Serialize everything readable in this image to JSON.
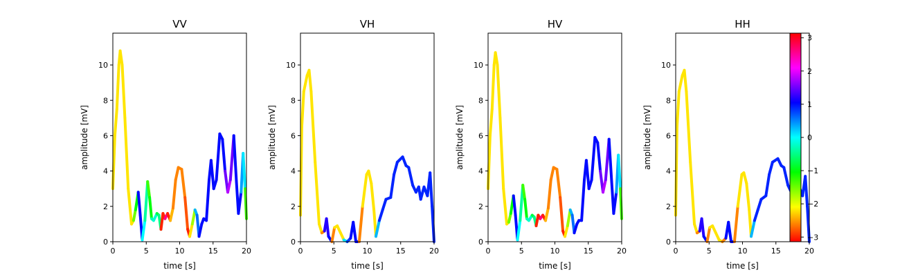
{
  "chart_data": {
    "type": "line",
    "description_colorscale": "hsv phase colormap",
    "colorbar": {
      "ticks": [
        3,
        2,
        1,
        0,
        -1,
        -2,
        -3
      ],
      "range": [
        -3.14,
        3.14
      ]
    },
    "panels": [
      {
        "title": "VV",
        "xlabel": "time [s]",
        "ylabel": "amplitude [mV]",
        "xlim": [
          0,
          20
        ],
        "ylim": [
          0,
          11.8
        ],
        "xticks": [
          0,
          5,
          10,
          15,
          20
        ],
        "yticks": [
          0,
          2,
          4,
          6,
          8,
          10
        ],
        "points": [
          [
            0,
            3.0,
            -2.2
          ],
          [
            0.3,
            6.0,
            -2.2
          ],
          [
            0.6,
            7.5,
            -2.2
          ],
          [
            0.9,
            10.0,
            -2.2
          ],
          [
            1.1,
            10.8,
            -2.2
          ],
          [
            1.4,
            10.0,
            -2.2
          ],
          [
            1.8,
            7.0,
            -2.2
          ],
          [
            2.3,
            3.0,
            -2.2
          ],
          [
            2.8,
            1.0,
            -2.2
          ],
          [
            3.1,
            1.2,
            -1.5
          ],
          [
            3.4,
            1.8,
            -1.0
          ],
          [
            3.8,
            2.8,
            1.0
          ],
          [
            4.1,
            1.5,
            1.0
          ],
          [
            4.4,
            0.1,
            0.0
          ],
          [
            4.8,
            1.2,
            -0.4
          ],
          [
            5.2,
            3.4,
            -1.3
          ],
          [
            5.5,
            2.5,
            -1.0
          ],
          [
            5.8,
            1.3,
            -0.3
          ],
          [
            6.1,
            1.2,
            -0.2
          ],
          [
            6.6,
            1.6,
            -0.8
          ],
          [
            6.9,
            1.5,
            -0.5
          ],
          [
            7.2,
            0.7,
            -3.0
          ],
          [
            7.5,
            1.6,
            -3.0
          ],
          [
            7.8,
            1.3,
            2.6
          ],
          [
            8.2,
            1.6,
            -3.0
          ],
          [
            8.6,
            1.2,
            -2.4
          ],
          [
            9.0,
            1.9,
            -2.6
          ],
          [
            9.4,
            3.5,
            -2.6
          ],
          [
            9.8,
            4.2,
            -2.6
          ],
          [
            10.3,
            4.1,
            -2.6
          ],
          [
            10.8,
            2.5,
            -2.8
          ],
          [
            11.2,
            0.7,
            -3.0
          ],
          [
            11.5,
            0.3,
            -2.2
          ],
          [
            11.9,
            1.0,
            -1.7
          ],
          [
            12.3,
            1.8,
            0.3
          ],
          [
            12.6,
            1.5,
            0.6
          ],
          [
            12.9,
            0.3,
            1.0
          ],
          [
            13.3,
            1.0,
            1.0
          ],
          [
            13.6,
            1.3,
            1.0
          ],
          [
            14.0,
            1.2,
            1.0
          ],
          [
            14.4,
            3.5,
            1.0
          ],
          [
            14.7,
            4.6,
            1.0
          ],
          [
            15.1,
            3.0,
            1.0
          ],
          [
            15.5,
            3.5,
            1.0
          ],
          [
            16.0,
            6.1,
            1.0
          ],
          [
            16.4,
            5.8,
            1.0
          ],
          [
            16.8,
            4.0,
            1.5
          ],
          [
            17.2,
            2.8,
            1.8
          ],
          [
            17.6,
            3.5,
            1.5
          ],
          [
            18.1,
            6.0,
            1.0
          ],
          [
            18.5,
            3.4,
            1.0
          ],
          [
            18.8,
            1.6,
            1.0
          ],
          [
            19.2,
            2.8,
            0.4
          ],
          [
            19.5,
            5.0,
            0.1
          ],
          [
            19.8,
            3.0,
            -1.3
          ],
          [
            20,
            1.3,
            -1.3
          ]
        ]
      },
      {
        "title": "VH",
        "xlabel": "time [s]",
        "ylabel": "amplitude [mV]",
        "xlim": [
          0,
          20
        ],
        "ylim": [
          0,
          11.8
        ],
        "xticks": [
          0,
          5,
          10,
          15,
          20
        ],
        "yticks": [
          0,
          2,
          4,
          6,
          8,
          10
        ],
        "points": [
          [
            0,
            1.5,
            -2.2
          ],
          [
            0.2,
            6.5,
            -2.2
          ],
          [
            0.5,
            8.5,
            -2.2
          ],
          [
            1.0,
            9.4,
            -2.2
          ],
          [
            1.3,
            9.7,
            -2.2
          ],
          [
            1.6,
            8.5,
            -2.2
          ],
          [
            2.2,
            4.5,
            -2.2
          ],
          [
            2.8,
            1.0,
            -2.2
          ],
          [
            3.2,
            0.5,
            -2.6
          ],
          [
            3.6,
            0.6,
            1.2
          ],
          [
            3.9,
            1.3,
            1.2
          ],
          [
            4.2,
            0.3,
            1.0
          ],
          [
            4.7,
            0.0,
            -2.6
          ],
          [
            5.1,
            0.8,
            -2.2
          ],
          [
            5.5,
            0.9,
            -2.2
          ],
          [
            6.0,
            0.5,
            -2.2
          ],
          [
            6.5,
            0.1,
            0.1
          ],
          [
            7.0,
            0.0,
            0.8
          ],
          [
            7.5,
            0.2,
            1.0
          ],
          [
            7.9,
            1.1,
            1.0
          ],
          [
            8.3,
            0.0,
            1.0
          ],
          [
            8.8,
            0.0,
            -2.6
          ],
          [
            9.3,
            2.0,
            -2.2
          ],
          [
            9.9,
            3.8,
            -2.2
          ],
          [
            10.2,
            4.0,
            -2.2
          ],
          [
            10.6,
            3.3,
            -2.2
          ],
          [
            11.0,
            1.8,
            -2.2
          ],
          [
            11.3,
            0.3,
            0.3
          ],
          [
            11.8,
            1.2,
            0.9
          ],
          [
            12.3,
            1.8,
            0.9
          ],
          [
            12.8,
            2.4,
            0.9
          ],
          [
            13.5,
            2.5,
            0.9
          ],
          [
            14.0,
            3.8,
            0.9
          ],
          [
            14.5,
            4.5,
            0.9
          ],
          [
            15.3,
            4.8,
            0.9
          ],
          [
            15.8,
            4.3,
            0.9
          ],
          [
            16.2,
            4.2,
            0.9
          ],
          [
            16.8,
            3.2,
            0.9
          ],
          [
            17.3,
            2.8,
            0.9
          ],
          [
            17.7,
            3.1,
            0.9
          ],
          [
            18.0,
            2.4,
            0.9
          ],
          [
            18.5,
            3.1,
            0.9
          ],
          [
            19.0,
            2.6,
            0.9
          ],
          [
            19.4,
            3.9,
            0.9
          ],
          [
            19.7,
            2.0,
            0.9
          ],
          [
            20,
            0.0,
            -2.8
          ]
        ]
      },
      {
        "title": "HV",
        "xlabel": "time [s]",
        "ylabel": "amplitude [mV]",
        "xlim": [
          0,
          20
        ],
        "ylim": [
          0,
          11.8
        ],
        "xticks": [
          0,
          5,
          10,
          15,
          20
        ],
        "yticks": [
          0,
          2,
          4,
          6,
          8,
          10
        ],
        "points": [
          [
            0,
            3.0,
            -2.2
          ],
          [
            0.3,
            6.0,
            -2.2
          ],
          [
            0.6,
            7.5,
            -2.2
          ],
          [
            0.9,
            10.0,
            -2.2
          ],
          [
            1.1,
            10.7,
            -2.2
          ],
          [
            1.4,
            10.0,
            -2.2
          ],
          [
            1.8,
            7.0,
            -2.2
          ],
          [
            2.3,
            3.0,
            -2.2
          ],
          [
            2.8,
            1.0,
            -2.2
          ],
          [
            3.1,
            1.1,
            -1.5
          ],
          [
            3.4,
            1.6,
            -1.0
          ],
          [
            3.8,
            2.6,
            1.0
          ],
          [
            4.1,
            1.5,
            1.0
          ],
          [
            4.4,
            0.1,
            0.0
          ],
          [
            4.8,
            1.2,
            -0.4
          ],
          [
            5.2,
            3.2,
            -1.3
          ],
          [
            5.5,
            2.4,
            -1.0
          ],
          [
            5.8,
            1.3,
            -0.3
          ],
          [
            6.1,
            1.2,
            -0.2
          ],
          [
            6.6,
            1.5,
            -0.8
          ],
          [
            6.9,
            1.4,
            -0.5
          ],
          [
            7.2,
            0.9,
            -3.0
          ],
          [
            7.5,
            1.5,
            -3.0
          ],
          [
            7.8,
            1.3,
            2.6
          ],
          [
            8.2,
            1.5,
            -3.0
          ],
          [
            8.6,
            1.2,
            -2.4
          ],
          [
            9.0,
            1.9,
            -2.6
          ],
          [
            9.4,
            3.5,
            -2.6
          ],
          [
            9.8,
            4.2,
            -2.6
          ],
          [
            10.3,
            4.1,
            -2.6
          ],
          [
            10.8,
            2.5,
            -2.8
          ],
          [
            11.2,
            0.6,
            -3.0
          ],
          [
            11.5,
            0.3,
            -2.2
          ],
          [
            11.9,
            0.9,
            -1.7
          ],
          [
            12.3,
            1.8,
            0.3
          ],
          [
            12.6,
            1.5,
            0.6
          ],
          [
            12.9,
            0.5,
            1.0
          ],
          [
            13.3,
            1.0,
            1.0
          ],
          [
            13.6,
            1.2,
            1.0
          ],
          [
            14.0,
            1.2,
            1.0
          ],
          [
            14.4,
            3.5,
            1.0
          ],
          [
            14.7,
            4.6,
            1.0
          ],
          [
            15.1,
            3.0,
            1.0
          ],
          [
            15.5,
            3.5,
            1.0
          ],
          [
            16.0,
            5.9,
            1.0
          ],
          [
            16.4,
            5.6,
            1.0
          ],
          [
            16.8,
            4.0,
            1.5
          ],
          [
            17.2,
            2.8,
            1.8
          ],
          [
            17.6,
            3.5,
            1.5
          ],
          [
            18.1,
            5.8,
            1.0
          ],
          [
            18.5,
            3.4,
            1.0
          ],
          [
            18.8,
            1.6,
            1.0
          ],
          [
            19.2,
            2.8,
            0.4
          ],
          [
            19.5,
            4.9,
            0.1
          ],
          [
            19.8,
            3.0,
            -1.3
          ],
          [
            20,
            1.3,
            -1.3
          ]
        ]
      },
      {
        "title": "HH",
        "xlabel": "time [s]",
        "ylabel": "amplitude [mV]",
        "xlim": [
          0,
          20
        ],
        "ylim": [
          0,
          11.8
        ],
        "xticks": [
          0,
          5,
          10,
          15,
          20
        ],
        "yticks": [
          0,
          2,
          4,
          6,
          8,
          10
        ],
        "points": [
          [
            0,
            1.5,
            -2.2
          ],
          [
            0.2,
            6.5,
            -2.2
          ],
          [
            0.5,
            8.5,
            -2.2
          ],
          [
            1.0,
            9.4,
            -2.2
          ],
          [
            1.3,
            9.7,
            -2.2
          ],
          [
            1.6,
            8.5,
            -2.2
          ],
          [
            2.2,
            4.5,
            -2.2
          ],
          [
            2.8,
            1.0,
            -2.2
          ],
          [
            3.2,
            0.5,
            -2.6
          ],
          [
            3.6,
            0.6,
            1.2
          ],
          [
            3.9,
            1.3,
            1.2
          ],
          [
            4.2,
            0.3,
            1.0
          ],
          [
            4.7,
            0.0,
            -2.6
          ],
          [
            5.1,
            0.8,
            -2.2
          ],
          [
            5.5,
            0.9,
            -2.2
          ],
          [
            6.0,
            0.5,
            -2.2
          ],
          [
            6.5,
            0.1,
            -2.2
          ],
          [
            7.0,
            0.0,
            -2.6
          ],
          [
            7.5,
            0.2,
            1.0
          ],
          [
            7.9,
            1.1,
            1.0
          ],
          [
            8.3,
            0.0,
            1.0
          ],
          [
            8.8,
            0.0,
            -2.6
          ],
          [
            9.3,
            2.0,
            -2.2
          ],
          [
            9.9,
            3.8,
            -2.2
          ],
          [
            10.2,
            3.9,
            -2.2
          ],
          [
            10.6,
            3.3,
            -2.2
          ],
          [
            11.0,
            1.8,
            -2.2
          ],
          [
            11.3,
            0.3,
            0.3
          ],
          [
            11.8,
            1.2,
            0.9
          ],
          [
            12.3,
            1.8,
            0.9
          ],
          [
            12.8,
            2.4,
            0.9
          ],
          [
            13.5,
            2.6,
            0.9
          ],
          [
            14.0,
            3.8,
            0.9
          ],
          [
            14.5,
            4.5,
            0.9
          ],
          [
            15.3,
            4.7,
            0.9
          ],
          [
            15.8,
            4.3,
            0.9
          ],
          [
            16.2,
            4.2,
            0.9
          ],
          [
            16.8,
            3.2,
            0.9
          ],
          [
            17.3,
            2.8,
            0.9
          ],
          [
            17.7,
            3.1,
            0.9
          ],
          [
            18.0,
            2.4,
            0.9
          ],
          [
            18.5,
            3.1,
            0.9
          ],
          [
            19.0,
            2.6,
            0.9
          ],
          [
            19.4,
            3.7,
            0.9
          ],
          [
            19.7,
            2.0,
            0.9
          ],
          [
            20,
            0.0,
            -2.8
          ]
        ]
      }
    ]
  }
}
